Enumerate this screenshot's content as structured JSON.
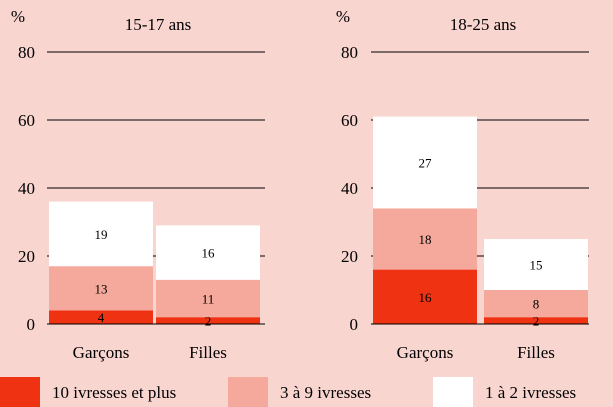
{
  "chart_data": [
    {
      "type": "bar",
      "stacked": true,
      "title": "15-17 ans",
      "ylabel": "%",
      "ylim": [
        0,
        80
      ],
      "yticks": [
        0,
        20,
        40,
        60,
        80
      ],
      "grid": true,
      "categories": [
        "Garçons",
        "Filles"
      ],
      "series": [
        {
          "name": "10 ivresses et plus",
          "values": [
            4,
            2
          ]
        },
        {
          "name": "3 à 9 ivresses",
          "values": [
            13,
            11
          ]
        },
        {
          "name": "1 à 2 ivresses",
          "values": [
            19,
            16
          ]
        }
      ]
    },
    {
      "type": "bar",
      "stacked": true,
      "title": "18-25 ans",
      "ylabel": "%",
      "ylim": [
        0,
        80
      ],
      "yticks": [
        0,
        20,
        40,
        60,
        80
      ],
      "grid": true,
      "categories": [
        "Garçons",
        "Filles"
      ],
      "series": [
        {
          "name": "10 ivresses et plus",
          "values": [
            16,
            2
          ]
        },
        {
          "name": "3 à 9 ivresses",
          "values": [
            18,
            8
          ]
        },
        {
          "name": "1 à 2 ivresses",
          "values": [
            27,
            15
          ]
        }
      ]
    }
  ],
  "legend": [
    {
      "label": "10 ivresses et plus",
      "color": "#ee3212"
    },
    {
      "label": "3 à 9 ivresses",
      "color": "#f5a99c"
    },
    {
      "label": "1 à 2 ivresses",
      "color": "#ffffff"
    }
  ],
  "colors": {
    "background": "#f9d5d0",
    "axis": "#000000"
  }
}
